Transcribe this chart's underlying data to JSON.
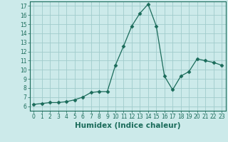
{
  "x": [
    0,
    1,
    2,
    3,
    4,
    5,
    6,
    7,
    8,
    9,
    10,
    11,
    12,
    13,
    14,
    15,
    16,
    17,
    18,
    19,
    20,
    21,
    22,
    23
  ],
  "y": [
    6.2,
    6.3,
    6.4,
    6.4,
    6.5,
    6.7,
    7.0,
    7.5,
    7.6,
    7.6,
    10.5,
    12.6,
    14.8,
    16.2,
    17.2,
    14.8,
    9.3,
    7.8,
    9.3,
    9.8,
    11.2,
    11.0,
    10.8,
    10.5
  ],
  "xlabel": "Humidex (Indice chaleur)",
  "line_color": "#1a6b5a",
  "marker": "D",
  "marker_size": 2.5,
  "bg_color": "#cceaea",
  "grid_color": "#a0cccc",
  "xlim": [
    -0.5,
    23.5
  ],
  "ylim": [
    5.5,
    17.5
  ],
  "yticks": [
    6,
    7,
    8,
    9,
    10,
    11,
    12,
    13,
    14,
    15,
    16,
    17
  ],
  "xticks": [
    0,
    1,
    2,
    3,
    4,
    5,
    6,
    7,
    8,
    9,
    10,
    11,
    12,
    13,
    14,
    15,
    16,
    17,
    18,
    19,
    20,
    21,
    22,
    23
  ],
  "tick_fontsize": 5.5,
  "xlabel_fontsize": 7.5
}
